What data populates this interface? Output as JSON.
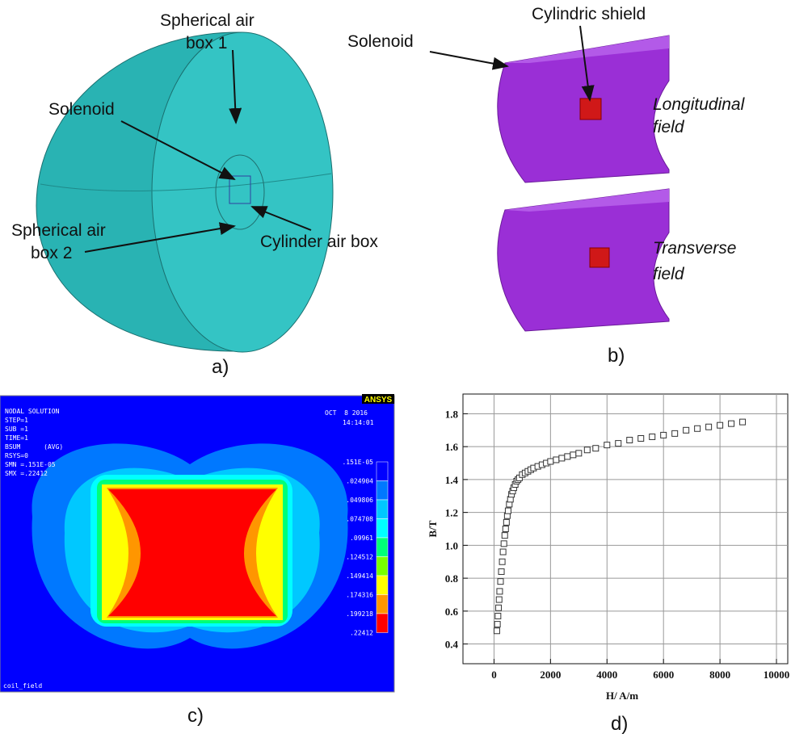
{
  "panel_a": {
    "caption": "a)",
    "labels": [
      {
        "lines": [
          "Spherical air",
          "box 1"
        ]
      },
      {
        "lines": [
          "Solenoid"
        ]
      },
      {
        "lines": [
          "Spherical air",
          "box 2"
        ]
      },
      {
        "lines": [
          "Cylinder air box"
        ]
      }
    ]
  },
  "panel_b": {
    "caption": "b)",
    "labels": [
      {
        "lines": [
          "Solenoid"
        ]
      },
      {
        "lines": [
          "Cylindric shield"
        ]
      },
      {
        "lines": [
          "Longitudinal",
          "field"
        ]
      },
      {
        "lines": [
          "Transverse",
          "field"
        ]
      }
    ]
  },
  "panel_c": {
    "caption": "c)",
    "logo": "ANSYS",
    "info": [
      "NODAL SOLUTION",
      "STEP=1",
      "SUB =1",
      "TIME=1",
      "BSUM      (AVG)",
      "RSYS=0",
      "SMN =.151E-05",
      "SMX =.22412"
    ],
    "date": "OCT  8 2016",
    "time": "14:14:01",
    "levels": [
      ".151E-05",
      ".024904",
      ".049806",
      ".074708",
      ".09961",
      ".124512",
      ".149414",
      ".174316",
      ".199218",
      ".22412"
    ],
    "colors": [
      "#0000ff",
      "#0078ff",
      "#00c8ff",
      "#00ffff",
      "#00ff78",
      "#78ff00",
      "#ffff00",
      "#ff9600",
      "#ff0000"
    ],
    "footer": "coil_field"
  },
  "chart_data": {
    "type": "scatter",
    "caption": "d)",
    "x_label": "H/ A/m",
    "y_label": "B/T",
    "marker": "square",
    "color": "#333333",
    "grid": true,
    "xlim": [
      -1100,
      10400
    ],
    "ylim": [
      0.28,
      1.92
    ],
    "xticks": [
      0,
      2000,
      4000,
      6000,
      8000,
      10000
    ],
    "yticks": [
      0.4,
      0.6,
      0.8,
      {
        "value": 1,
        "label": "1.0"
      },
      1.2,
      1.4,
      1.6,
      1.8
    ],
    "x": [
      100,
      120,
      140,
      160,
      180,
      200,
      230,
      260,
      290,
      320,
      350,
      380,
      410,
      440,
      470,
      500,
      540,
      580,
      620,
      660,
      700,
      750,
      800,
      850,
      900,
      1000,
      1100,
      1200,
      1300,
      1400,
      1550,
      1700,
      1850,
      2000,
      2200,
      2400,
      2600,
      2800,
      3000,
      3300,
      3600,
      4000,
      4400,
      4800,
      5200,
      5600,
      6000,
      6400,
      6800,
      7200,
      7600,
      8000,
      8400,
      8800
    ],
    "values": [
      0.48,
      0.52,
      0.57,
      0.62,
      0.67,
      0.72,
      0.78,
      0.84,
      0.9,
      0.96,
      1.01,
      1.06,
      1.1,
      1.14,
      1.18,
      1.21,
      1.25,
      1.28,
      1.31,
      1.33,
      1.35,
      1.37,
      1.39,
      1.4,
      1.41,
      1.43,
      1.44,
      1.45,
      1.46,
      1.47,
      1.48,
      1.49,
      1.5,
      1.51,
      1.52,
      1.53,
      1.54,
      1.55,
      1.56,
      1.58,
      1.59,
      1.61,
      1.62,
      1.64,
      1.65,
      1.66,
      1.67,
      1.68,
      1.7,
      1.71,
      1.72,
      1.73,
      1.74,
      1.75
    ]
  }
}
